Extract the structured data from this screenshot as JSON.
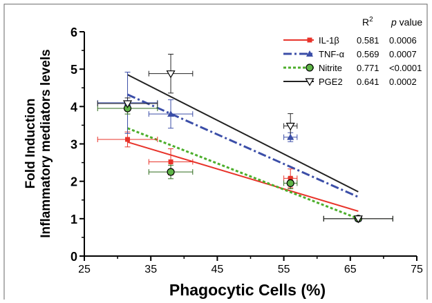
{
  "chart_data": {
    "type": "scatter",
    "xlabel": "Phagocytic Cells (%)",
    "ylabel_line1": "Fold Induction",
    "ylabel_line2": "Inflammatory mediators levels",
    "xlim": [
      25,
      75
    ],
    "ylim": [
      0,
      6
    ],
    "xticks": [
      "25",
      "35",
      "45",
      "55",
      "65",
      "75"
    ],
    "yticks": [
      "0",
      "1",
      "2",
      "3",
      "4",
      "5",
      "6"
    ],
    "grid": false,
    "legend": {
      "placement": "top-right",
      "header_r2": "R",
      "header_r2_sup": "2",
      "header_p_italic": "p",
      "header_p": " value"
    },
    "series": [
      {
        "name": "IL-1β",
        "color": "#e8332a",
        "marker": "square",
        "line_style": "solid",
        "r2": "0.581",
        "p": "0.0006",
        "points": [
          {
            "x": 31.5,
            "y": 3.12,
            "xerr": 4.5,
            "yerr": 0.2
          },
          {
            "x": 38.0,
            "y": 2.52,
            "xerr": 3.3,
            "yerr": 0.35
          },
          {
            "x": 56.0,
            "y": 2.08,
            "xerr": 1.0,
            "yerr": 0.25
          },
          {
            "x": 66.2,
            "y": 1.0,
            "xerr": 5.2,
            "yerr": 0.03
          }
        ],
        "fit": [
          [
            31.5,
            3.05
          ],
          [
            66.2,
            1.2
          ]
        ]
      },
      {
        "name": "TNF-α",
        "color": "#3b4ea8",
        "marker": "triangle",
        "line_style": "dashdot",
        "r2": "0.569",
        "p": "0.0007",
        "points": [
          {
            "x": 31.5,
            "y": 4.1,
            "xerr": 4.5,
            "yerr": 0.82
          },
          {
            "x": 38.0,
            "y": 3.8,
            "xerr": 3.3,
            "yerr": 0.38
          },
          {
            "x": 56.0,
            "y": 3.18,
            "xerr": 1.0,
            "yerr": 0.12
          },
          {
            "x": 66.2,
            "y": 1.0,
            "xerr": 5.2,
            "yerr": 0.03
          }
        ],
        "fit": [
          [
            31.5,
            4.32
          ],
          [
            66.2,
            1.58
          ]
        ]
      },
      {
        "name": "Nitrite",
        "color": "#4cae2b",
        "marker": "circle",
        "line_style": "dotted",
        "r2": "0.771",
        "p": "<0.0001",
        "points": [
          {
            "x": 31.5,
            "y": 3.95,
            "xerr": 4.5,
            "yerr": 0.15
          },
          {
            "x": 38.0,
            "y": 2.25,
            "xerr": 3.3,
            "yerr": 0.18
          },
          {
            "x": 56.0,
            "y": 1.95,
            "xerr": 1.0,
            "yerr": 0.15
          },
          {
            "x": 66.2,
            "y": 1.0,
            "xerr": 5.2,
            "yerr": 0.03
          }
        ],
        "fit": [
          [
            31.5,
            3.42
          ],
          [
            66.2,
            1.0
          ]
        ]
      },
      {
        "name": "PGE2",
        "color": "#222222",
        "marker": "triangle-down",
        "line_style": "solid",
        "r2": "0.641",
        "p": "0.0002",
        "points": [
          {
            "x": 31.5,
            "y": 4.08,
            "xerr": 4.5,
            "yerr": 0.15
          },
          {
            "x": 38.0,
            "y": 4.88,
            "xerr": 3.3,
            "yerr": 0.52
          },
          {
            "x": 56.0,
            "y": 3.48,
            "xerr": 1.0,
            "yerr": 0.33
          },
          {
            "x": 66.2,
            "y": 1.0,
            "xerr": 5.2,
            "yerr": 0.03
          }
        ],
        "fit": [
          [
            31.5,
            4.85
          ],
          [
            66.2,
            1.72
          ]
        ]
      }
    ]
  }
}
